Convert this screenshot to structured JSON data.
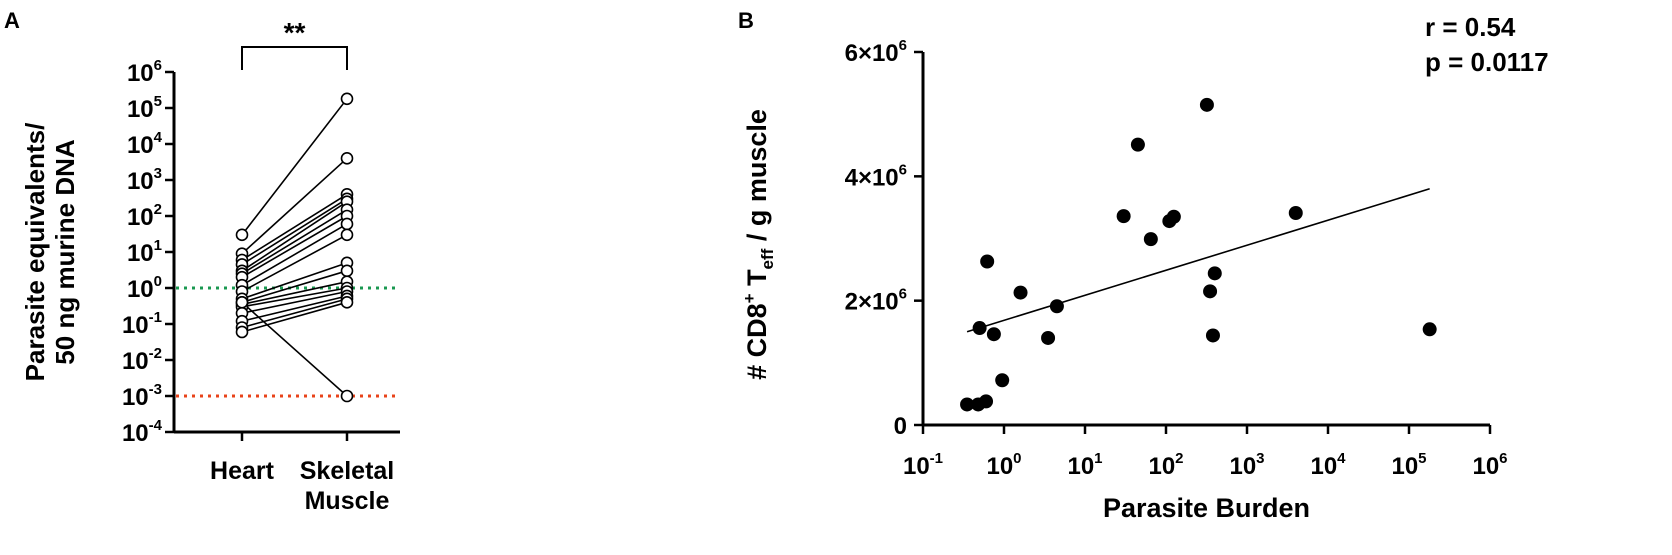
{
  "chart_data": [
    {
      "panel_label": "A",
      "type": "scatter",
      "ylabel_lines": [
        "Parasite equivalents/",
        "50 ng murine DNA"
      ],
      "categories": [
        {
          "lines": [
            "Heart"
          ]
        },
        {
          "lines": [
            "Skeletal",
            "Muscle"
          ]
        }
      ],
      "yscale": "log",
      "ylim": [
        0.0001,
        1000000
      ],
      "y_ticks": [
        {
          "base": "10",
          "exp": "-4",
          "value": 0.0001
        },
        {
          "base": "10",
          "exp": "-3",
          "value": 0.001
        },
        {
          "base": "10",
          "exp": "-2",
          "value": 0.01
        },
        {
          "base": "10",
          "exp": "-1",
          "value": 0.1
        },
        {
          "base": "10",
          "exp": "0",
          "value": 1
        },
        {
          "base": "10",
          "exp": "1",
          "value": 10
        },
        {
          "base": "10",
          "exp": "2",
          "value": 100
        },
        {
          "base": "10",
          "exp": "3",
          "value": 1000
        },
        {
          "base": "10",
          "exp": "4",
          "value": 10000
        },
        {
          "base": "10",
          "exp": "5",
          "value": 100000
        },
        {
          "base": "10",
          "exp": "6",
          "value": 1000000
        }
      ],
      "significance": "**",
      "reference_lines": [
        {
          "value": 1,
          "color": "#1a9850"
        },
        {
          "value": 0.001,
          "color": "#e8431a"
        }
      ],
      "marker": "open-circle",
      "pairs": [
        [
          30,
          180000
        ],
        [
          9,
          4000
        ],
        [
          6,
          400
        ],
        [
          4.5,
          300
        ],
        [
          3,
          250
        ],
        [
          2.5,
          150
        ],
        [
          2,
          100
        ],
        [
          1.2,
          60
        ],
        [
          0.8,
          30
        ],
        [
          0.5,
          5
        ],
        [
          0.4,
          3
        ],
        [
          0.35,
          1.5
        ],
        [
          0.3,
          1
        ],
        [
          0.2,
          0.8
        ],
        [
          0.12,
          0.6
        ],
        [
          0.08,
          0.5
        ],
        [
          0.06,
          0.4
        ],
        [
          0.4,
          0.001
        ]
      ]
    },
    {
      "panel_label": "B",
      "type": "scatter",
      "xlabel": "Parasite Burden",
      "ylabel": {
        "prefix": "# CD8",
        "sup": "+",
        "mid": " T",
        "sub": "eff",
        "suffix": "  / g muscle"
      },
      "xscale": "log",
      "xlim": [
        0.1,
        1000000
      ],
      "ylim": [
        0,
        6000000
      ],
      "x_ticks": [
        {
          "base": "10",
          "exp": "-1",
          "value": 0.1
        },
        {
          "base": "10",
          "exp": "0",
          "value": 1
        },
        {
          "base": "10",
          "exp": "1",
          "value": 10
        },
        {
          "base": "10",
          "exp": "2",
          "value": 100
        },
        {
          "base": "10",
          "exp": "3",
          "value": 1000
        },
        {
          "base": "10",
          "exp": "4",
          "value": 10000
        },
        {
          "base": "10",
          "exp": "5",
          "value": 100000
        },
        {
          "base": "10",
          "exp": "6",
          "value": 1000000
        }
      ],
      "y_ticks": [
        {
          "text": "0",
          "value": 0
        },
        {
          "text": "2×10",
          "exp": "6",
          "value": 2000000
        },
        {
          "text": "4×10",
          "exp": "6",
          "value": 4000000
        },
        {
          "text": "6×10",
          "exp": "6",
          "value": 6000000
        }
      ],
      "annotations": [
        "r = 0.54",
        "p = 0.0117"
      ],
      "marker": "filled-circle",
      "points": [
        {
          "x": 0.35,
          "y": 330000
        },
        {
          "x": 0.48,
          "y": 330000
        },
        {
          "x": 0.6,
          "y": 380000
        },
        {
          "x": 0.5,
          "y": 1560000
        },
        {
          "x": 0.62,
          "y": 2630000
        },
        {
          "x": 0.75,
          "y": 1460000
        },
        {
          "x": 0.95,
          "y": 720000
        },
        {
          "x": 1.6,
          "y": 2130000
        },
        {
          "x": 3.5,
          "y": 1400000
        },
        {
          "x": 4.5,
          "y": 1910000
        },
        {
          "x": 30,
          "y": 3360000
        },
        {
          "x": 45,
          "y": 4510000
        },
        {
          "x": 65,
          "y": 2990000
        },
        {
          "x": 110,
          "y": 3280000
        },
        {
          "x": 125,
          "y": 3350000
        },
        {
          "x": 320,
          "y": 5150000
        },
        {
          "x": 350,
          "y": 2150000
        },
        {
          "x": 380,
          "y": 1440000
        },
        {
          "x": 400,
          "y": 2440000
        },
        {
          "x": 4000,
          "y": 3410000
        },
        {
          "x": 180000,
          "y": 1540000
        }
      ],
      "regression": {
        "x_start": 0.35,
        "x_end": 180000,
        "y_start": 1500000,
        "y_end": 3800000
      }
    }
  ]
}
